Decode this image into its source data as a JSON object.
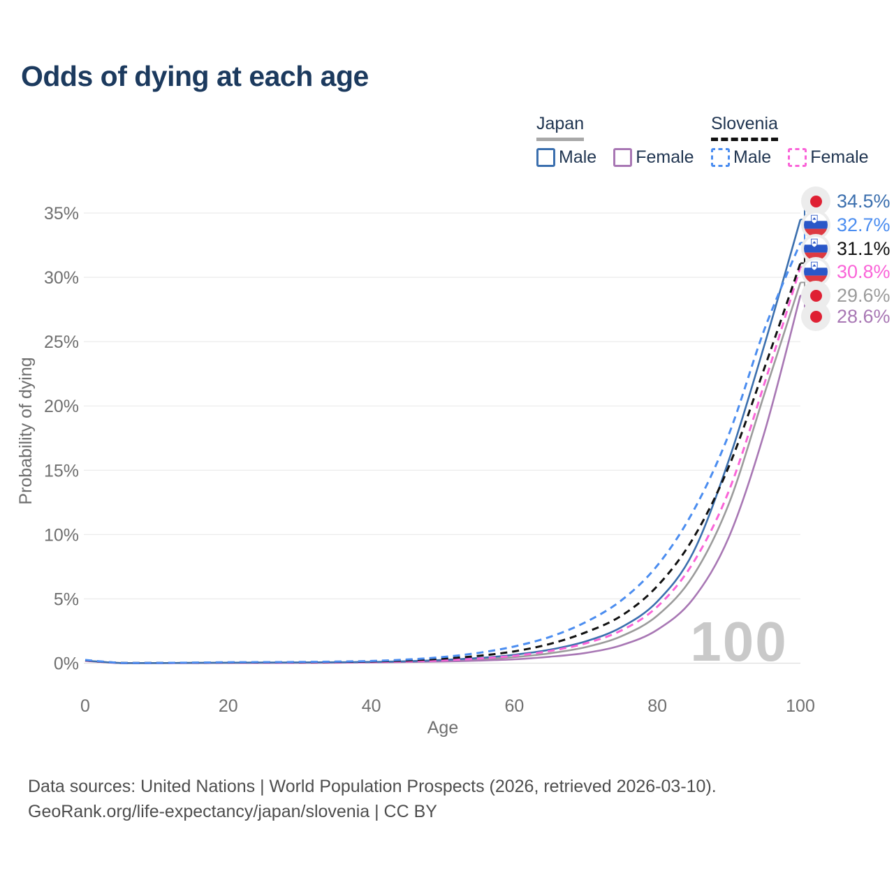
{
  "page": {
    "title": "Odds of dying at each age"
  },
  "legend": {
    "groups": [
      {
        "id": "japan",
        "label": "Japan",
        "line_style": "solid",
        "underline_color": "#a8a8a8",
        "items": [
          {
            "label": "Male",
            "color": "#3b6fae"
          },
          {
            "label": "Female",
            "color": "#a877b4"
          }
        ]
      },
      {
        "id": "slovenia",
        "label": "Slovenia",
        "line_style": "dashed",
        "underline_color": "#111111",
        "items": [
          {
            "label": "Male",
            "color": "#4b8df0"
          },
          {
            "label": "Female",
            "color": "#fa64d8"
          }
        ]
      }
    ]
  },
  "chart_data": {
    "type": "line",
    "title": "Odds of dying at each age",
    "xlabel": "Age",
    "ylabel": "Probability of dying",
    "xlim": [
      0,
      100
    ],
    "ylim": [
      0,
      35
    ],
    "x_ticks": [
      0,
      20,
      40,
      60,
      80,
      100
    ],
    "y_ticks": [
      0,
      5,
      10,
      15,
      20,
      25,
      30,
      35
    ],
    "y_tick_suffix": "%",
    "grid": true,
    "legend_position": "top-right",
    "watermark": "100",
    "x": [
      0,
      5,
      10,
      15,
      20,
      25,
      30,
      35,
      40,
      45,
      50,
      55,
      60,
      65,
      70,
      75,
      80,
      85,
      90,
      95,
      100
    ],
    "series": [
      {
        "id": "japan-both",
        "name": "Japan (both sexes)",
        "country": "Japan",
        "color": "#9b9b9b",
        "dashed": false,
        "flag": "japan",
        "end_label": "29.6%",
        "end_value": 29.6,
        "values": [
          0.19,
          0.01,
          0.01,
          0.02,
          0.03,
          0.04,
          0.04,
          0.06,
          0.08,
          0.12,
          0.19,
          0.3,
          0.47,
          0.77,
          1.25,
          2.1,
          3.7,
          6.8,
          12.4,
          21.0,
          29.6
        ]
      },
      {
        "id": "japan-female",
        "name": "Japan Female",
        "country": "Japan",
        "color": "#a877b4",
        "dashed": false,
        "flag": "japan",
        "end_label": "28.6%",
        "end_value": 28.6,
        "values": [
          0.18,
          0.01,
          0.01,
          0.01,
          0.02,
          0.02,
          0.03,
          0.04,
          0.06,
          0.09,
          0.13,
          0.2,
          0.3,
          0.5,
          0.8,
          1.4,
          2.6,
          5.0,
          9.8,
          18.0,
          28.6
        ]
      },
      {
        "id": "japan-male",
        "name": "Japan Male",
        "country": "Japan",
        "color": "#3b6fae",
        "dashed": false,
        "flag": "japan",
        "end_label": "34.5%",
        "end_value": 34.5,
        "values": [
          0.2,
          0.01,
          0.01,
          0.02,
          0.04,
          0.05,
          0.06,
          0.07,
          0.1,
          0.15,
          0.25,
          0.4,
          0.65,
          1.05,
          1.7,
          2.8,
          4.8,
          8.6,
          15.8,
          24.8,
          34.5
        ]
      },
      {
        "id": "slovenia-female",
        "name": "Slovenia Female",
        "country": "Slovenia",
        "color": "#fa64d8",
        "dashed": true,
        "flag": "slovenia",
        "end_label": "30.8%",
        "end_value": 30.8,
        "values": [
          0.2,
          0.01,
          0.01,
          0.02,
          0.03,
          0.03,
          0.04,
          0.06,
          0.09,
          0.14,
          0.22,
          0.36,
          0.57,
          0.95,
          1.55,
          2.55,
          4.4,
          7.8,
          13.4,
          21.8,
          30.8
        ]
      },
      {
        "id": "slovenia-both",
        "name": "Slovenia (both sexes)",
        "country": "Slovenia",
        "color": "#111111",
        "dashed": true,
        "flag": "slovenia",
        "end_label": "31.1%",
        "end_value": 31.1,
        "values": [
          0.22,
          0.02,
          0.02,
          0.03,
          0.05,
          0.06,
          0.07,
          0.09,
          0.13,
          0.21,
          0.35,
          0.57,
          0.92,
          1.5,
          2.4,
          3.7,
          6.0,
          9.7,
          15.3,
          23.0,
          31.1
        ]
      },
      {
        "id": "slovenia-male",
        "name": "Slovenia Male",
        "country": "Slovenia",
        "color": "#4b8df0",
        "dashed": true,
        "flag": "slovenia",
        "end_label": "32.7%",
        "end_value": 32.7,
        "values": [
          0.25,
          0.02,
          0.02,
          0.04,
          0.07,
          0.08,
          0.09,
          0.12,
          0.17,
          0.28,
          0.48,
          0.8,
          1.3,
          2.05,
          3.2,
          4.9,
          7.6,
          11.8,
          17.8,
          26.0,
          32.7
        ]
      }
    ],
    "colors": {
      "grid": "#ececec",
      "baseline": "#dedede",
      "tick_text": "#6f6f6f",
      "watermark": "#c9c9c9",
      "badge_bg": "#ececec",
      "japan_flag_red": "#df2033",
      "slovenia_flag_blue": "#2a57c8",
      "slovenia_flag_red": "#dd3a42"
    }
  },
  "footer": {
    "line1": "Data sources: United Nations | World Population Prospects (2026, retrieved 2026-03-10).",
    "line2": "GeoRank.org/life-expectancy/japan/slovenia | CC BY"
  }
}
